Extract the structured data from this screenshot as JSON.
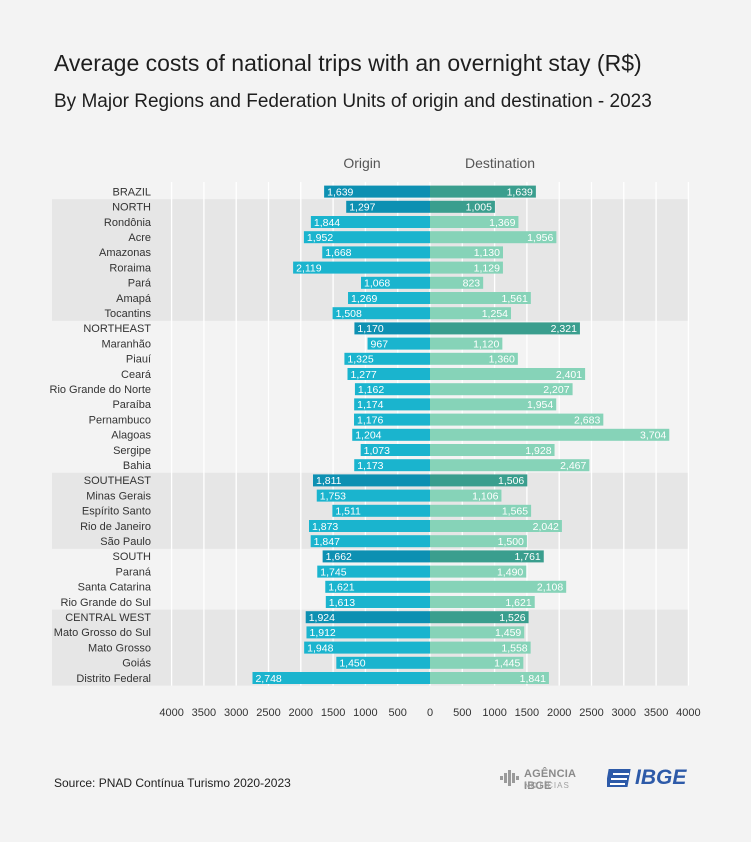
{
  "title": "Average costs of national trips with an overnight stay (R$)",
  "subtitle": "By Major Regions and Federation Units of origin and destination - 2023",
  "source": "Source: PNAD Contínua Turismo 2020-2023",
  "logos": {
    "agency_name": "AGÊNCIA IBGE",
    "agency_sub": "NOTÍCIAS",
    "ibge_name": "IBGE"
  },
  "colors": {
    "background": "#f3f3f3",
    "band": "#e6e6e6",
    "origin_total": "#0d90b2",
    "origin_state": "#1ab4ce",
    "destination_total": "#3a9e8e",
    "destination_state": "#86d3b8"
  },
  "chart_data": {
    "type": "bar",
    "orientation": "horizontal",
    "layout": "diverging",
    "series": [
      {
        "name": "Origin",
        "values": [
          1639,
          1297,
          1844,
          1952,
          1668,
          2119,
          1068,
          1269,
          1508,
          1170,
          967,
          1325,
          1277,
          1162,
          1174,
          1176,
          1204,
          1073,
          1173,
          1811,
          1753,
          1511,
          1873,
          1847,
          1662,
          1745,
          1621,
          1613,
          1924,
          1912,
          1948,
          1450,
          2748
        ],
        "labels": [
          "1,639",
          "1,297",
          "1,844",
          "1,952",
          "1,668",
          "2,119",
          "1,068",
          "1,269",
          "1,508",
          "1,170",
          "967",
          "1,325",
          "1,277",
          "1,162",
          "1,174",
          "1,176",
          "1,204",
          "1,073",
          "1,173",
          "1,811",
          "1,753",
          "1,511",
          "1,873",
          "1,847",
          "1,662",
          "1,745",
          "1,621",
          "1,613",
          "1,924",
          "1,912",
          "1,948",
          "1,450",
          "2,748"
        ]
      },
      {
        "name": "Destination",
        "values": [
          1639,
          1005,
          1369,
          1956,
          1130,
          1129,
          823,
          1561,
          1254,
          2321,
          1120,
          1360,
          2401,
          2207,
          1954,
          2683,
          3704,
          1928,
          2467,
          1506,
          1106,
          1565,
          2042,
          1500,
          1761,
          1490,
          2108,
          1621,
          1526,
          1459,
          1558,
          1445,
          1841
        ],
        "labels": [
          "1,639",
          "1,005",
          "1,369",
          "1,956",
          "1,130",
          "1,129",
          "823",
          "1,561",
          "1,254",
          "2,321",
          "1,120",
          "1,360",
          "2,401",
          "2,207",
          "1,954",
          "2,683",
          "3,704",
          "1,928",
          "2,467",
          "1,506",
          "1,106",
          "1,565",
          "2,042",
          "1,500",
          "1,761",
          "1,490",
          "2,108",
          "1,621",
          "1,526",
          "1,459",
          "1,558",
          "1,445",
          "1,841"
        ]
      }
    ],
    "categories": [
      "BRAZIL",
      "NORTH",
      "Rondônia",
      "Acre",
      "Amazonas",
      "Roraima",
      "Pará",
      "Amapá",
      "Tocantins",
      "NORTHEAST",
      "Maranhão",
      "Piauí",
      "Ceará",
      "Rio Grande do Norte",
      "Paraíba",
      "Pernambuco",
      "Alagoas",
      "Sergipe",
      "Bahia",
      "SOUTHEAST",
      "Minas Gerais",
      "Espírito Santo",
      "Rio de Janeiro",
      "São Paulo",
      "SOUTH",
      "Paraná",
      "Santa Catarina",
      "Rio Grande do Sul",
      "CENTRAL WEST",
      "Mato Grosso do Sul",
      "Mato Grosso",
      "Goiás",
      "Distrito Federal"
    ],
    "totals": [
      "BRAZIL",
      "NORTH",
      "NORTHEAST",
      "SOUTHEAST",
      "SOUTH",
      "CENTRAL WEST"
    ],
    "region_bands": [
      [
        "NORTH",
        "Tocantins"
      ],
      [
        "SOUTHEAST",
        "São Paulo"
      ],
      [
        "CENTRAL WEST",
        "Distrito Federal"
      ]
    ],
    "xlim": [
      -4000,
      4000
    ],
    "xticks": [
      4000,
      3500,
      3000,
      2500,
      2000,
      1500,
      1000,
      500,
      0,
      500,
      1000,
      1500,
      2000,
      2500,
      3000,
      3500,
      4000
    ],
    "grid": true,
    "xlabel": "",
    "ylabel": ""
  }
}
